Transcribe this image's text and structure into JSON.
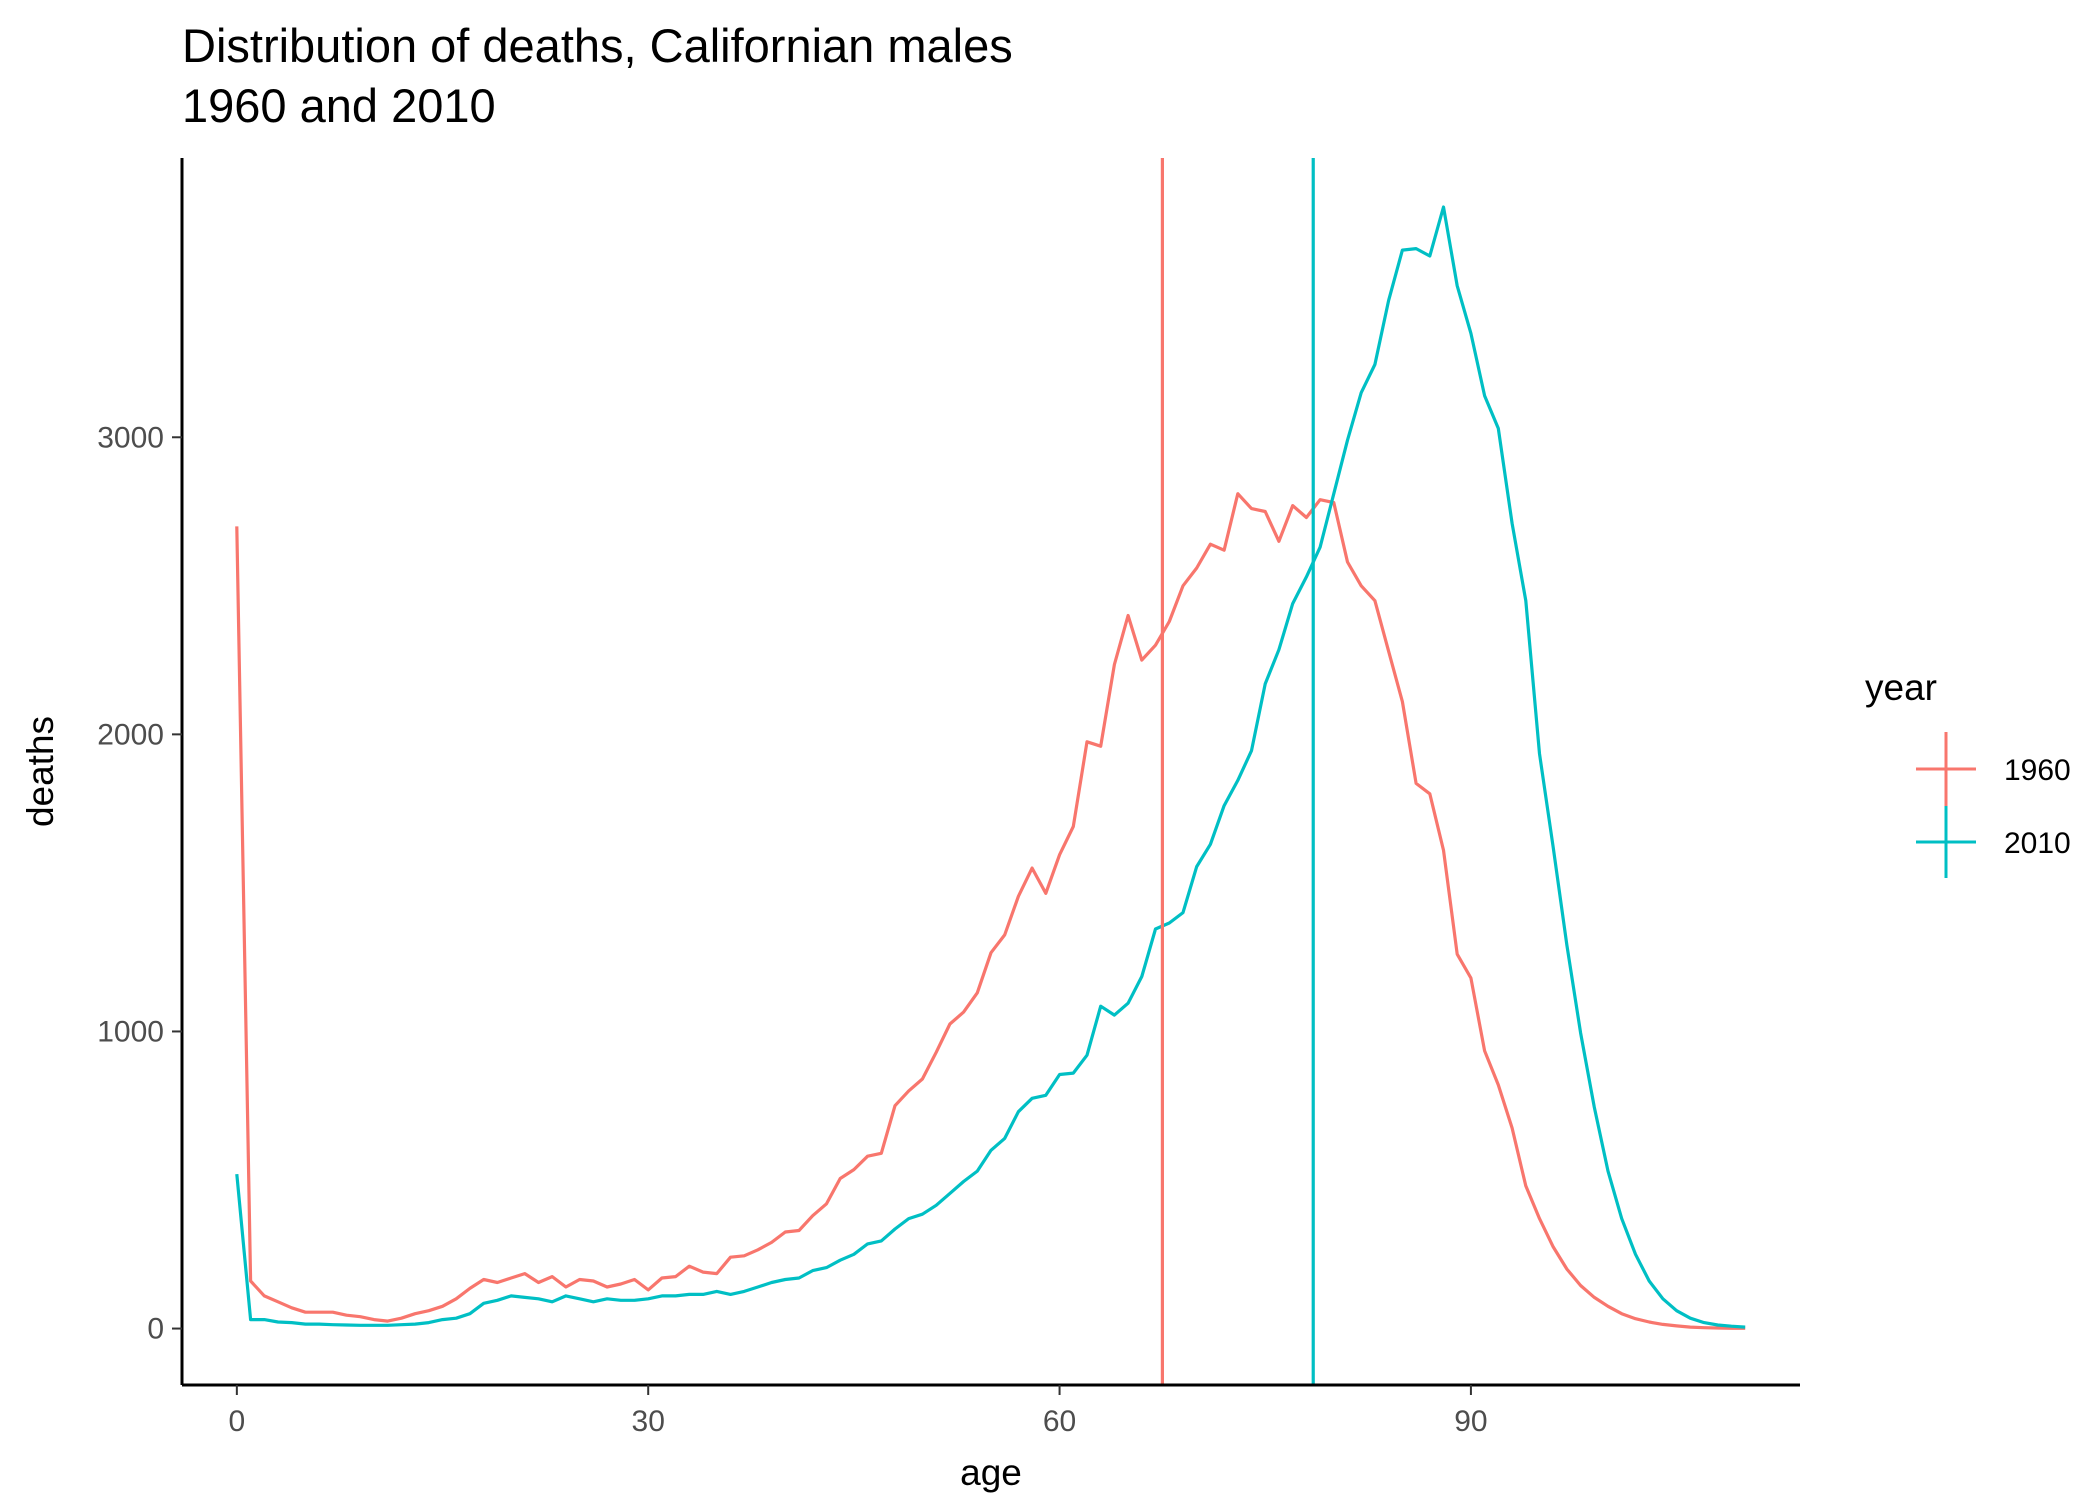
{
  "chart_data": {
    "type": "line",
    "title": "Distribution of deaths, Californian males",
    "subtitle": "1960 and 2010",
    "xlabel": "age",
    "ylabel": "deaths",
    "xlim": [
      -4,
      114
    ],
    "ylim": [
      -190,
      3940
    ],
    "x_ticks": [
      0,
      30,
      60,
      90
    ],
    "x_tick_labels": [
      "0",
      "30",
      "60",
      "90"
    ],
    "y_ticks": [
      0,
      1000,
      2000,
      3000
    ],
    "y_tick_labels": [
      "0",
      "1000",
      "2000",
      "3000"
    ],
    "grid": false,
    "legend": {
      "title": "year",
      "placement": "right"
    },
    "x": [
      0,
      1,
      2,
      3,
      4,
      5,
      6,
      7,
      8,
      9,
      10,
      11,
      12,
      13,
      14,
      15,
      16,
      17,
      18,
      19,
      20,
      21,
      22,
      23,
      24,
      25,
      26,
      27,
      28,
      29,
      30,
      31,
      32,
      33,
      34,
      35,
      36,
      37,
      38,
      39,
      40,
      41,
      42,
      43,
      44,
      45,
      46,
      47,
      48,
      49,
      50,
      51,
      52,
      53,
      54,
      55,
      56,
      57,
      58,
      59,
      60,
      61,
      62,
      63,
      64,
      65,
      66,
      67,
      68,
      69,
      70,
      71,
      72,
      73,
      74,
      75,
      76,
      77,
      78,
      79,
      80,
      81,
      82,
      83,
      84,
      85,
      86,
      87,
      88,
      89,
      90,
      91,
      92,
      93,
      94,
      95,
      96,
      97,
      98,
      99,
      100,
      101,
      102,
      103,
      104,
      105,
      106,
      107,
      108,
      109,
      110
    ],
    "series": [
      {
        "name": "1960",
        "color": "#F8766D",
        "mean_age": 67.5,
        "values": [
          2700,
          160,
          110,
          90,
          70,
          55,
          55,
          55,
          45,
          40,
          30,
          25,
          35,
          50,
          60,
          75,
          100,
          135,
          165,
          155,
          170,
          185,
          155,
          175,
          140,
          165,
          160,
          140,
          150,
          165,
          130,
          170,
          175,
          210,
          190,
          185,
          240,
          245,
          265,
          290,
          325,
          330,
          380,
          420,
          505,
          535,
          580,
          590,
          750,
          800,
          840,
          930,
          1025,
          1065,
          1130,
          1265,
          1325,
          1455,
          1550,
          1465,
          1595,
          1690,
          1975,
          1960,
          2235,
          2400,
          2250,
          2300,
          2380,
          2500,
          2560,
          2640,
          2620,
          2810,
          2760,
          2750,
          2650,
          2770,
          2730,
          2790,
          2780,
          2580,
          2500,
          2450,
          2280,
          2110,
          1835,
          1800,
          1610,
          1260,
          1180,
          935,
          820,
          675,
          480,
          370,
          275,
          200,
          145,
          105,
          75,
          50,
          33,
          22,
          14,
          9,
          5,
          3,
          2,
          1,
          1
        ],
        "note": ""
      },
      {
        "name": "2010",
        "color": "#00BFC4",
        "mean_age": 78.5,
        "values": [
          520,
          30,
          30,
          22,
          20,
          15,
          15,
          13,
          12,
          11,
          11,
          11,
          13,
          15,
          20,
          30,
          35,
          50,
          85,
          95,
          110,
          105,
          100,
          90,
          110,
          100,
          90,
          100,
          95,
          95,
          100,
          110,
          110,
          115,
          115,
          125,
          115,
          125,
          140,
          155,
          165,
          170,
          195,
          205,
          230,
          250,
          285,
          295,
          335,
          370,
          385,
          415,
          455,
          495,
          530,
          600,
          640,
          730,
          775,
          785,
          855,
          860,
          920,
          1085,
          1055,
          1095,
          1185,
          1345,
          1365,
          1400,
          1555,
          1630,
          1760,
          1845,
          1945,
          2170,
          2285,
          2440,
          2530,
          2630,
          2810,
          2990,
          3150,
          3245,
          3460,
          3630,
          3635,
          3610,
          3775,
          3510,
          3350,
          3140,
          3030,
          2710,
          2450,
          1935,
          1620,
          1290,
          995,
          745,
          530,
          370,
          250,
          160,
          100,
          60,
          35,
          20,
          12,
          8,
          5
        ]
      }
    ]
  }
}
